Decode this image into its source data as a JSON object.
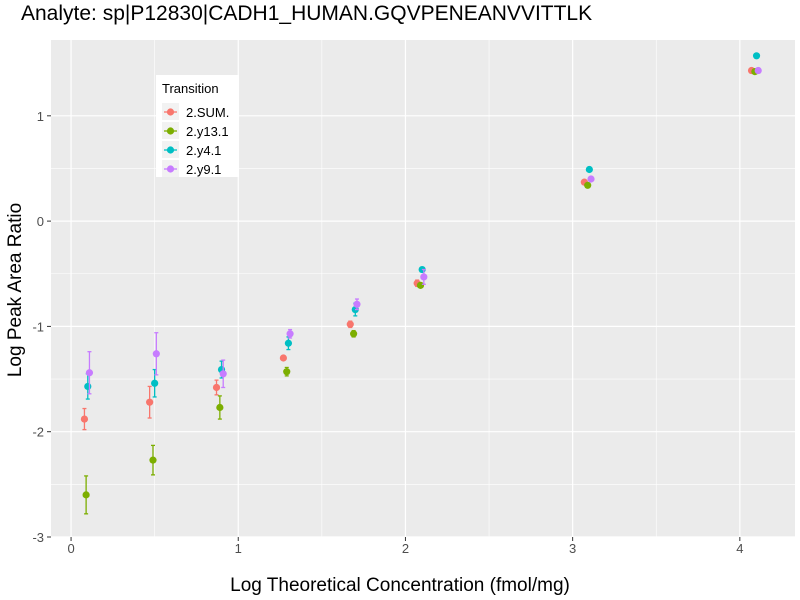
{
  "chart_data": {
    "type": "scatter",
    "title": "Analyte: sp|P12830|CADH1_HUMAN.GQVPENEANVVITTLK",
    "xlabel": "Log Theoretical Concentration (fmol/mg)",
    "ylabel": "Log Peak Area Ratio",
    "xlim": [
      -0.12,
      4.33
    ],
    "ylim": [
      -3.0,
      1.72
    ],
    "x_ticks": [
      0,
      1,
      2,
      3,
      4
    ],
    "y_ticks": [
      -3,
      -2,
      -1,
      0,
      1
    ],
    "grid": true,
    "legend": {
      "title": "Transition",
      "position": "top-left"
    },
    "series": [
      {
        "name": "2.SUM.",
        "color": "#F8766D",
        "points": [
          {
            "x": 0.08,
            "y": -1.88,
            "err": 0.1
          },
          {
            "x": 0.47,
            "y": -1.72,
            "err": 0.15
          },
          {
            "x": 0.87,
            "y": -1.58,
            "err": 0.07
          },
          {
            "x": 1.27,
            "y": -1.3,
            "err": 0.02
          },
          {
            "x": 1.67,
            "y": -0.98,
            "err": 0.03
          },
          {
            "x": 2.07,
            "y": -0.59,
            "err": 0.03
          },
          {
            "x": 3.07,
            "y": 0.37,
            "err": 0.0
          },
          {
            "x": 4.07,
            "y": 1.43,
            "err": 0.0
          }
        ]
      },
      {
        "name": "2.y13.1",
        "color": "#7CAE00",
        "points": [
          {
            "x": 0.09,
            "y": -2.6,
            "err": 0.18
          },
          {
            "x": 0.49,
            "y": -2.27,
            "err": 0.14
          },
          {
            "x": 0.89,
            "y": -1.77,
            "err": 0.11
          },
          {
            "x": 1.29,
            "y": -1.43,
            "err": 0.04
          },
          {
            "x": 1.69,
            "y": -1.07,
            "err": 0.03
          },
          {
            "x": 2.09,
            "y": -0.61,
            "err": 0.02
          },
          {
            "x": 3.09,
            "y": 0.34,
            "err": 0.0
          },
          {
            "x": 4.09,
            "y": 1.42,
            "err": 0.0
          }
        ]
      },
      {
        "name": "2.y4.1",
        "color": "#00BFC4",
        "points": [
          {
            "x": 0.1,
            "y": -1.57,
            "err": 0.12
          },
          {
            "x": 0.5,
            "y": -1.54,
            "err": 0.13
          },
          {
            "x": 0.9,
            "y": -1.41,
            "err": 0.08
          },
          {
            "x": 1.3,
            "y": -1.16,
            "err": 0.06
          },
          {
            "x": 1.7,
            "y": -0.84,
            "err": 0.06
          },
          {
            "x": 2.1,
            "y": -0.46,
            "err": 0.02
          },
          {
            "x": 3.1,
            "y": 0.49,
            "err": 0.0
          },
          {
            "x": 4.1,
            "y": 1.57,
            "err": 0.0
          }
        ]
      },
      {
        "name": "2.y9.1",
        "color": "#C77CFF",
        "points": [
          {
            "x": 0.11,
            "y": -1.44,
            "err": 0.2
          },
          {
            "x": 0.51,
            "y": -1.26,
            "err": 0.2
          },
          {
            "x": 0.91,
            "y": -1.45,
            "err": 0.13
          },
          {
            "x": 1.31,
            "y": -1.07,
            "err": 0.04
          },
          {
            "x": 1.71,
            "y": -0.79,
            "err": 0.05
          },
          {
            "x": 2.11,
            "y": -0.53,
            "err": 0.07
          },
          {
            "x": 3.11,
            "y": 0.4,
            "err": 0.0
          },
          {
            "x": 4.11,
            "y": 1.43,
            "err": 0.0
          }
        ]
      }
    ]
  }
}
